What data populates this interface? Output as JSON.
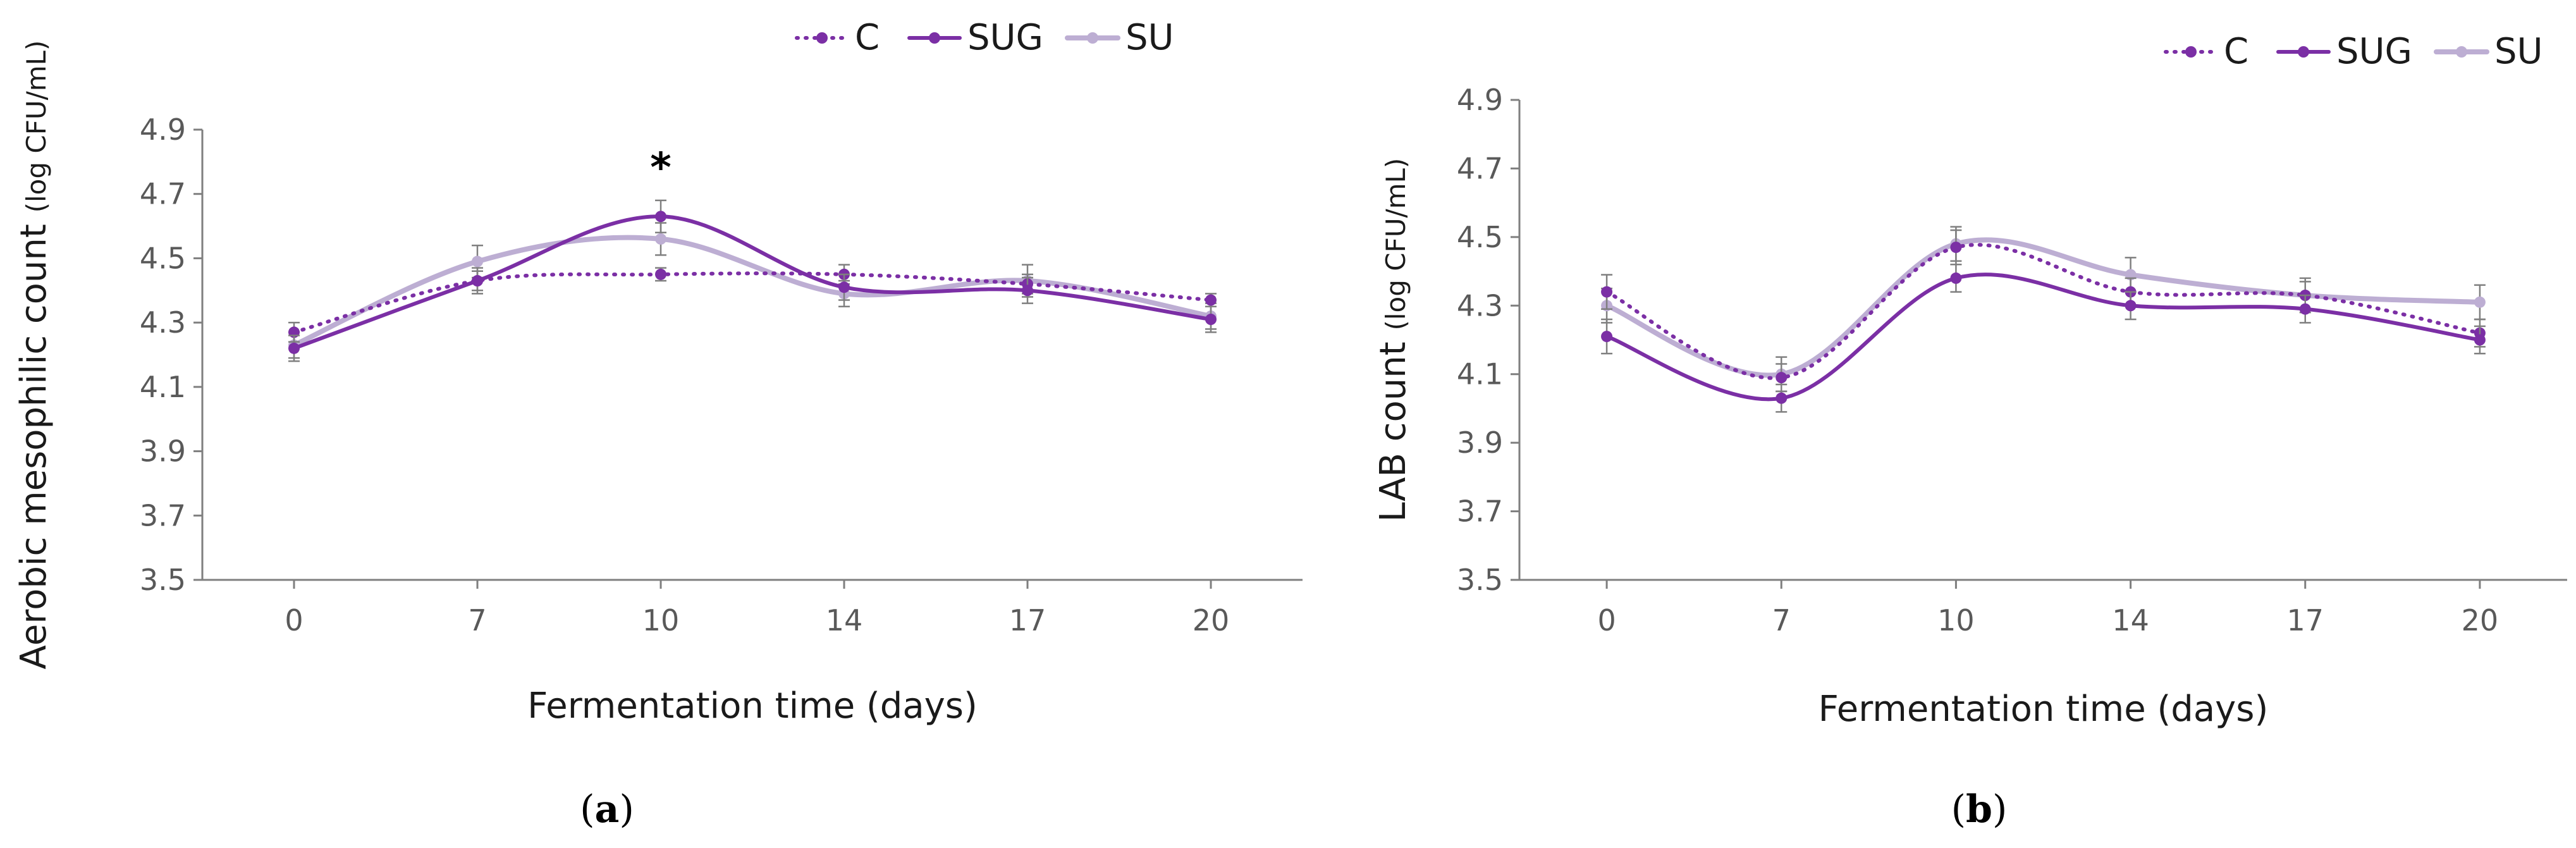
{
  "colors": {
    "C": "#7B2FA5",
    "SUG": "#7B2FA5",
    "SU": "#BDAED3",
    "axis": "#7f7f7f",
    "error_bar": "#7f7f7f"
  },
  "chart_data": [
    {
      "type": "line",
      "panel_label_open": "(",
      "panel_label_letter": "a",
      "panel_label_close": ")",
      "xlabel": "Fermentation time (days)",
      "ylabel": "Aerobic mesophilic count",
      "ylabel_unit": "(log CFU/mL)",
      "categories": [
        "0",
        "7",
        "10",
        "14",
        "17",
        "20"
      ],
      "ylim": [
        3.5,
        4.9
      ],
      "yticks": [
        "3.5",
        "3.7",
        "3.9",
        "4.1",
        "4.3",
        "4.5",
        "4.7",
        "4.9"
      ],
      "grid": false,
      "legend_position": "top-right",
      "series": [
        {
          "name": "C",
          "style": "dotted",
          "values": [
            4.27,
            4.43,
            4.45,
            4.45,
            4.42,
            4.37
          ],
          "errors": [
            0.03,
            0.03,
            0.02,
            0.03,
            0.03,
            0.02
          ]
        },
        {
          "name": "SUG",
          "style": "solid",
          "values": [
            4.22,
            4.43,
            4.63,
            4.41,
            4.4,
            4.31
          ],
          "errors": [
            0.04,
            0.04,
            0.05,
            0.04,
            0.04,
            0.04
          ]
        },
        {
          "name": "SU",
          "style": "solid",
          "values": [
            4.23,
            4.49,
            4.56,
            4.39,
            4.43,
            4.32
          ],
          "errors": [
            0.04,
            0.05,
            0.05,
            0.04,
            0.05,
            0.04
          ]
        }
      ],
      "annotations": [
        {
          "text": "*",
          "category": "10"
        }
      ]
    },
    {
      "type": "line",
      "panel_label_open": "(",
      "panel_label_letter": "b",
      "panel_label_close": ")",
      "xlabel": "Fermentation time (days)",
      "ylabel": "LAB count",
      "ylabel_unit": "(log CFU/mL)",
      "categories": [
        "0",
        "7",
        "10",
        "14",
        "17",
        "20"
      ],
      "ylim": [
        3.5,
        4.9
      ],
      "yticks": [
        "3.5",
        "3.7",
        "3.9",
        "4.1",
        "4.3",
        "4.5",
        "4.7",
        "4.9"
      ],
      "grid": false,
      "legend_position": "top-right",
      "series": [
        {
          "name": "C",
          "style": "dotted",
          "values": [
            4.34,
            4.09,
            4.47,
            4.34,
            4.33,
            4.22
          ],
          "errors": [
            0.05,
            0.04,
            0.05,
            0.04,
            0.04,
            0.04
          ]
        },
        {
          "name": "SUG",
          "style": "solid",
          "values": [
            4.21,
            4.03,
            4.38,
            4.3,
            4.29,
            4.2
          ],
          "errors": [
            0.05,
            0.04,
            0.04,
            0.04,
            0.04,
            0.04
          ]
        },
        {
          "name": "SU",
          "style": "solid",
          "values": [
            4.3,
            4.1,
            4.48,
            4.39,
            4.33,
            4.31
          ],
          "errors": [
            0.05,
            0.05,
            0.05,
            0.05,
            0.05,
            0.05
          ]
        }
      ],
      "annotations": []
    }
  ]
}
